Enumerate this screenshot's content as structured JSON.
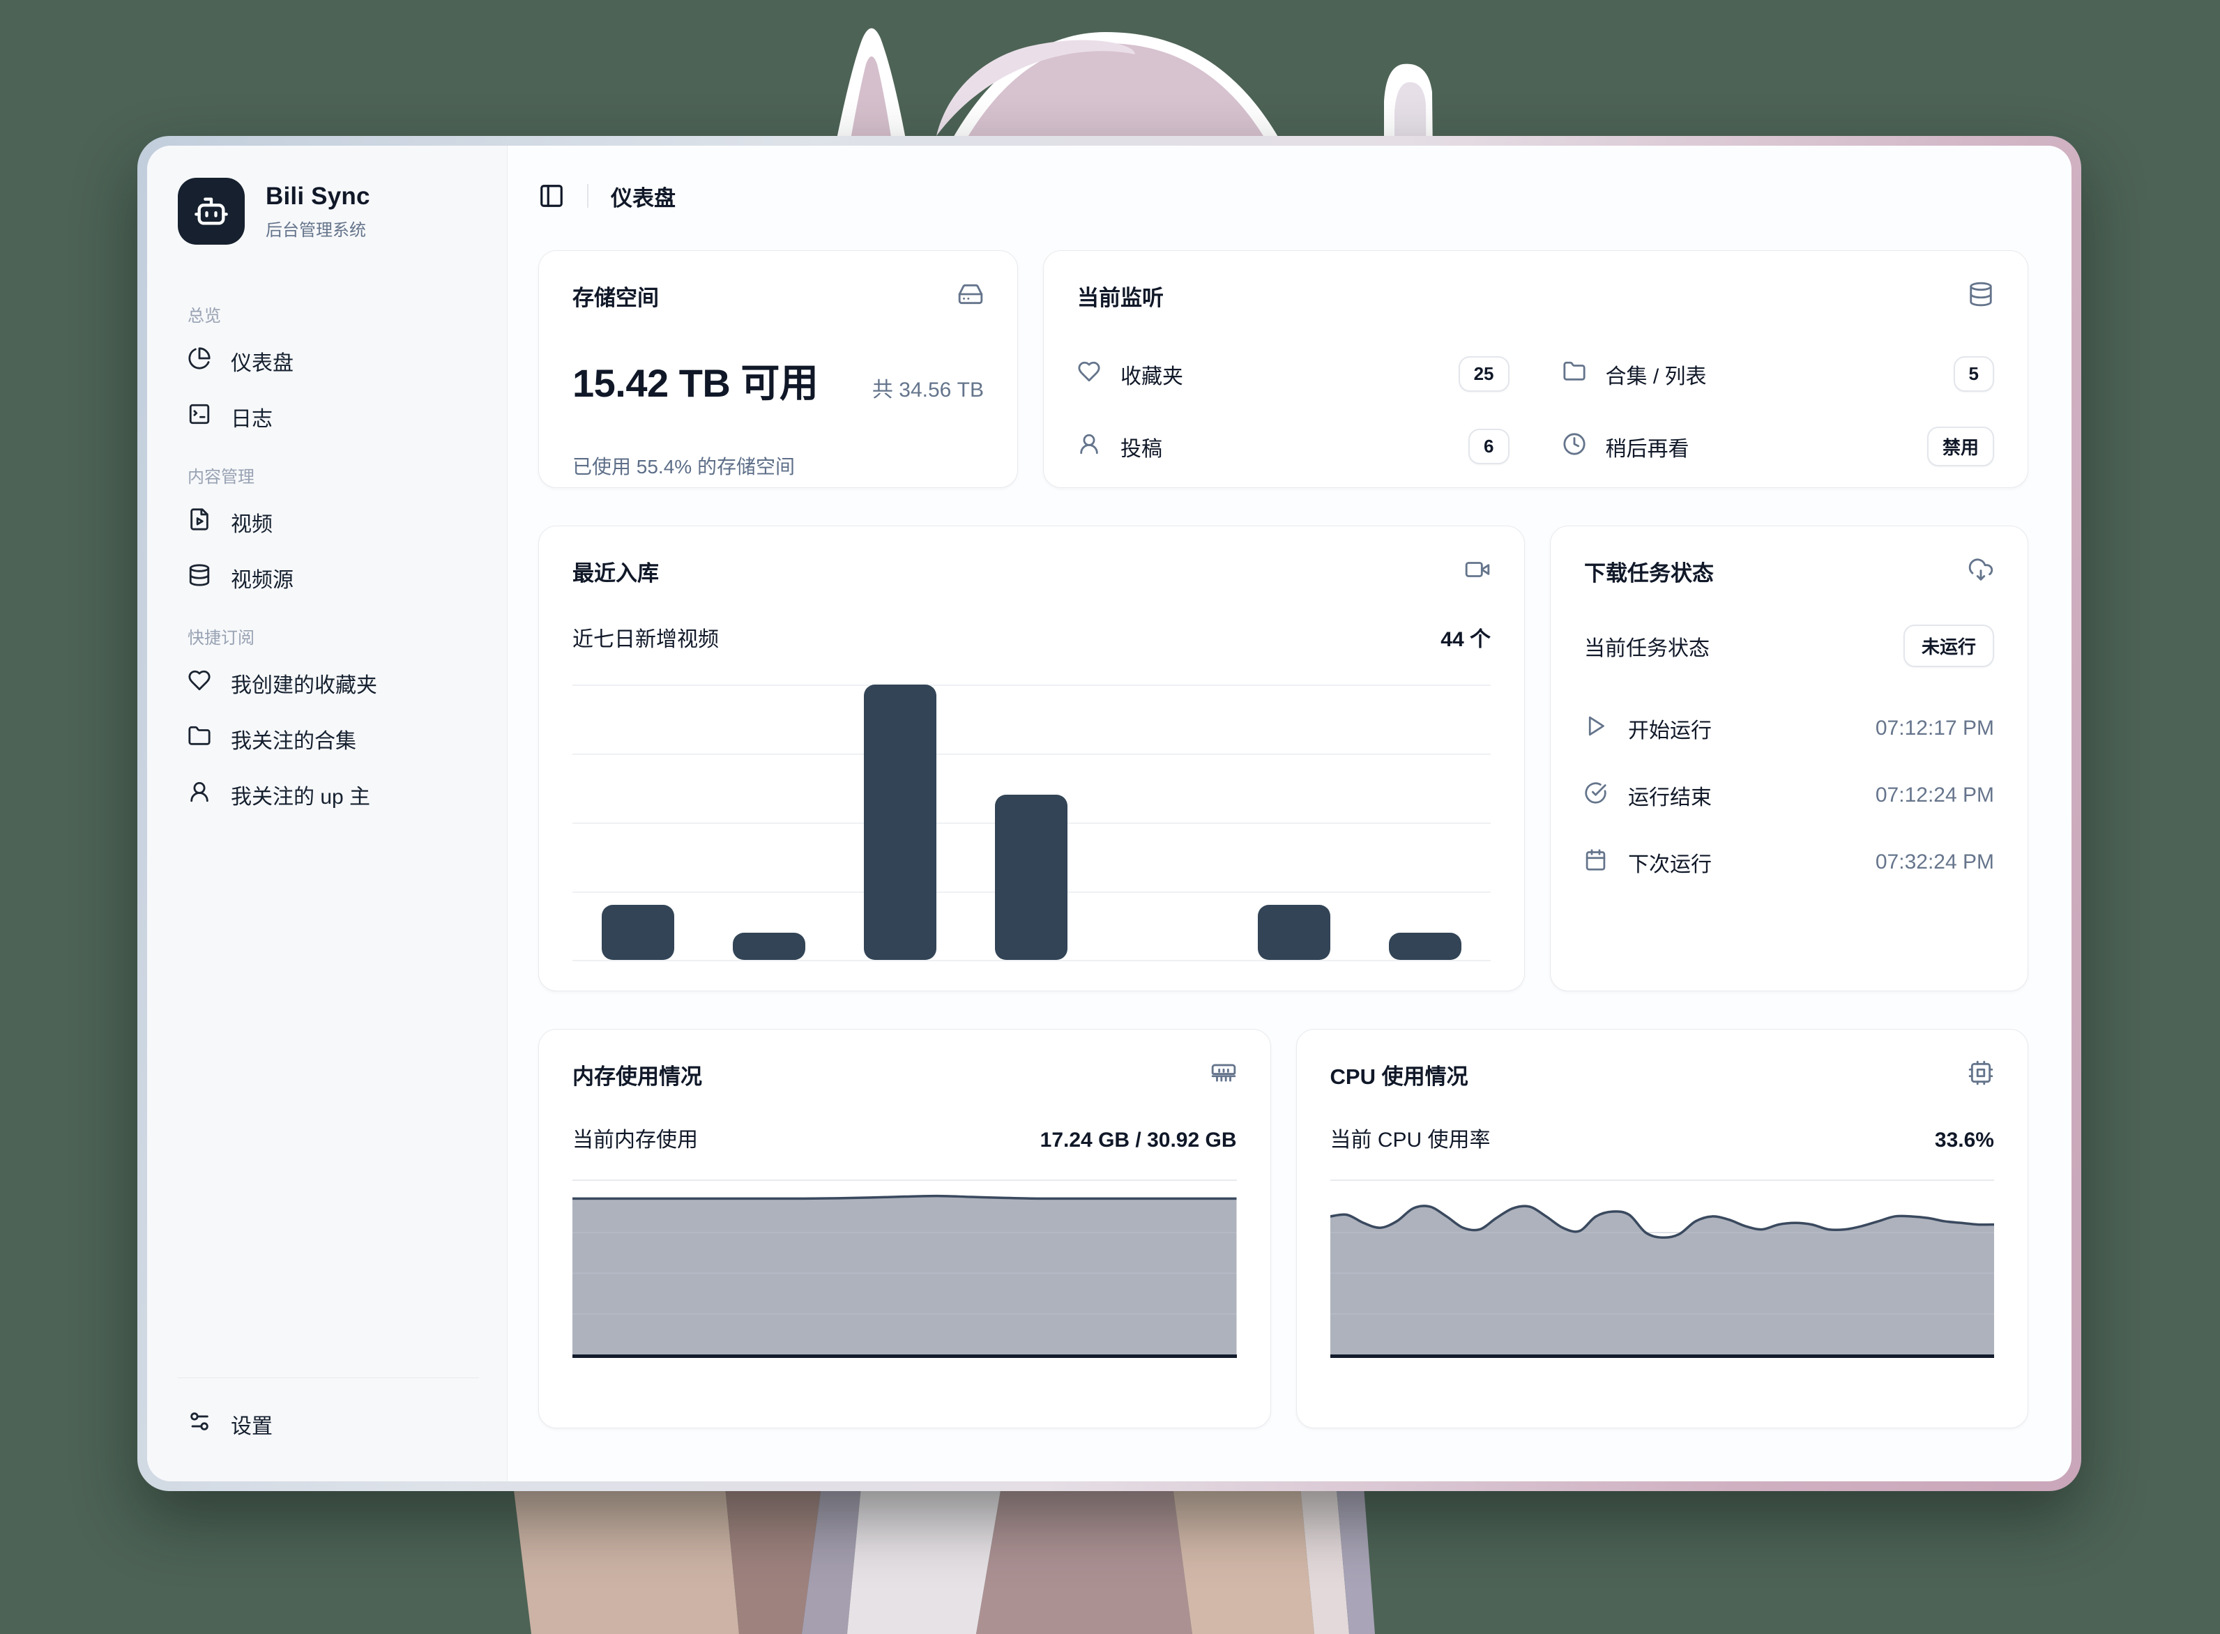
{
  "app": {
    "name": "Bili Sync",
    "subtitle": "后台管理系统"
  },
  "header": {
    "title": "仪表盘"
  },
  "sidebar": {
    "sections": [
      {
        "label": "总览",
        "items": [
          {
            "icon": "pie-chart-icon",
            "label": "仪表盘"
          },
          {
            "icon": "terminal-icon",
            "label": "日志"
          }
        ]
      },
      {
        "label": "内容管理",
        "items": [
          {
            "icon": "file-video-icon",
            "label": "视频"
          },
          {
            "icon": "database-icon",
            "label": "视频源"
          }
        ]
      },
      {
        "label": "快捷订阅",
        "items": [
          {
            "icon": "heart-icon",
            "label": "我创建的收藏夹"
          },
          {
            "icon": "folder-icon",
            "label": "我关注的合集"
          },
          {
            "icon": "user-icon",
            "label": "我关注的 up 主"
          }
        ]
      }
    ],
    "footer_item": {
      "icon": "sliders-icon",
      "label": "设置"
    }
  },
  "cards": {
    "storage": {
      "title": "存储空间",
      "icon": "hard-drive-icon",
      "available": "15.42 TB 可用",
      "total": "共 34.56 TB",
      "used_percent": 55.4,
      "usage_note": "已使用 55.4% 的存储空间"
    },
    "monitor": {
      "title": "当前监听",
      "icon": "database-icon",
      "items": [
        {
          "icon": "heart-icon",
          "label": "收藏夹",
          "value": "25"
        },
        {
          "icon": "folder-icon",
          "label": "合集 / 列表",
          "value": "5"
        },
        {
          "icon": "user-icon",
          "label": "投稿",
          "value": "6"
        },
        {
          "icon": "clock-icon",
          "label": "稍后再看",
          "value": "禁用"
        }
      ]
    },
    "recent": {
      "title": "最近入库",
      "icon": "video-icon",
      "subtitle": "近七日新增视频",
      "count_label": "44 个"
    },
    "task": {
      "title": "下载任务状态",
      "icon": "cloud-download-icon",
      "status_label": "当前任务状态",
      "status_value": "未运行",
      "rows": [
        {
          "icon": "play-icon",
          "label": "开始运行",
          "value": "07:12:17 PM"
        },
        {
          "icon": "check-circle-icon",
          "label": "运行结束",
          "value": "07:12:24 PM"
        },
        {
          "icon": "calendar-icon",
          "label": "下次运行",
          "value": "07:32:24 PM"
        }
      ]
    },
    "memory": {
      "title": "内存使用情况",
      "icon": "memory-stick-icon",
      "label": "当前内存使用",
      "value": "17.24 GB / 30.92 GB"
    },
    "cpu": {
      "title": "CPU 使用情况",
      "icon": "cpu-icon",
      "label": "当前 CPU 使用率",
      "value": "33.6%"
    }
  },
  "chart_data": [
    {
      "id": "recent_videos",
      "type": "bar",
      "title": "最近入库",
      "subtitle": "近七日新增视频",
      "total_label": "44 个",
      "categories": [
        "day-1",
        "day-2",
        "day-3",
        "day-4",
        "day-5",
        "day-6",
        "day-7"
      ],
      "values": [
        4,
        2,
        20,
        12,
        0,
        4,
        2
      ],
      "ylim": [
        0,
        20
      ],
      "gridlines": [
        0,
        5,
        10,
        15,
        20
      ],
      "xlabel": "",
      "ylabel": "",
      "legend": "none",
      "axis_tick_labels": "none"
    },
    {
      "id": "memory_usage",
      "type": "area",
      "current_label": "当前内存使用",
      "current_value": "17.24 GB / 30.92 GB",
      "series_fraction_from_top": [
        0.04,
        0.04,
        0.04,
        0.04,
        0.04,
        0.04,
        0.04,
        0.04,
        0.038,
        0.034,
        0.028,
        0.024,
        0.03,
        0.036,
        0.04,
        0.04,
        0.04,
        0.04,
        0.04,
        0.04,
        0.04
      ]
    },
    {
      "id": "cpu_usage",
      "type": "area",
      "current_label": "当前 CPU 使用率",
      "current_value": "33.6%",
      "series_fraction_from_top": [
        0.15,
        0.14,
        0.19,
        0.22,
        0.18,
        0.1,
        0.09,
        0.15,
        0.22,
        0.23,
        0.16,
        0.1,
        0.09,
        0.15,
        0.22,
        0.24,
        0.15,
        0.12,
        0.14,
        0.25,
        0.28,
        0.26,
        0.18,
        0.15,
        0.17,
        0.21,
        0.23,
        0.2,
        0.19,
        0.2,
        0.23,
        0.23,
        0.21,
        0.18,
        0.15,
        0.15,
        0.16,
        0.18,
        0.19,
        0.2,
        0.2
      ]
    }
  ],
  "colors": {
    "background_green": "#4d6356",
    "accent_dark": "#16202f",
    "bar": "#324456",
    "area_fill": "#adb2bd",
    "area_stroke": "#3a495e",
    "area_gridline": "#bcc1cb",
    "icon_gray": "#64748b",
    "frame_gradient_left": "#c2cedc",
    "frame_gradient_right": "#c9a6b9"
  }
}
